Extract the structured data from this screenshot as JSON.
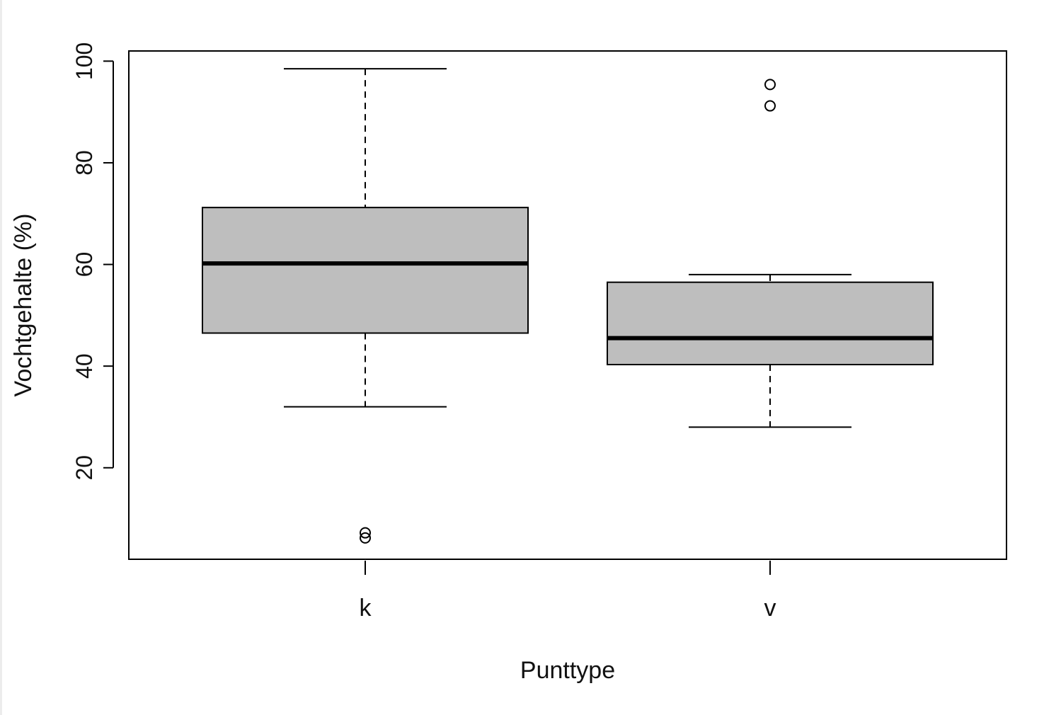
{
  "chart_data": {
    "type": "box",
    "title": "",
    "xlabel": "Punttype",
    "ylabel": "Vochtgehalte (%)",
    "ylim": [
      2,
      102
    ],
    "yticks": [
      20,
      40,
      60,
      80,
      100
    ],
    "categories": [
      "k",
      "v"
    ],
    "box_fill": "#bebebe",
    "line_color": "#000000",
    "grid": false,
    "boxes": [
      {
        "category": "k",
        "whisker_low": 32,
        "q1": 46.5,
        "median": 60.2,
        "q3": 71.2,
        "whisker_high": 98.5,
        "outliers": [
          6.2,
          7.2
        ]
      },
      {
        "category": "v",
        "whisker_low": 28,
        "q1": 40.3,
        "median": 45.5,
        "q3": 56.5,
        "whisker_high": 58,
        "outliers": [
          91.2,
          95.4
        ]
      }
    ]
  }
}
